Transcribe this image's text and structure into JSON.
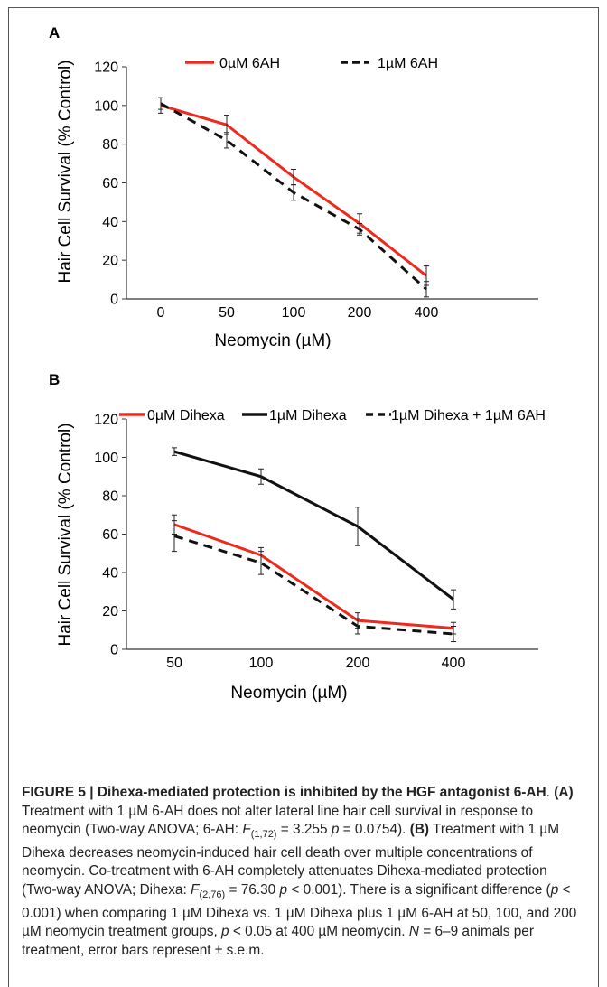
{
  "colors": {
    "red": "#ee2a1e",
    "black": "#111111",
    "axis": "#333333"
  },
  "chart_data": [
    {
      "panel": "A",
      "type": "line",
      "categories": [
        "0",
        "50",
        "100",
        "200",
        "400"
      ],
      "xlabel": "Neomycin (µM)",
      "ylabel": "Hair Cell Survival (% Control)",
      "ylim": [
        0,
        120
      ],
      "yticks": [
        0,
        20,
        40,
        60,
        80,
        100,
        120
      ],
      "legend_position": "top",
      "series": [
        {
          "name": "0µM 6AH",
          "color": "#ee2a1e",
          "dash": false,
          "values": [
            100,
            90,
            63,
            39,
            12
          ],
          "errors": [
            4,
            5,
            4,
            5,
            5
          ]
        },
        {
          "name": "1µM 6AH",
          "color": "#111111",
          "dash": true,
          "values": [
            101,
            82,
            55,
            36,
            5
          ],
          "errors": [
            3,
            4,
            4,
            3,
            4
          ]
        }
      ]
    },
    {
      "panel": "B",
      "type": "line",
      "categories": [
        "50",
        "100",
        "200",
        "400"
      ],
      "xlabel": "Neomycin (µM)",
      "ylabel": "Hair Cell Survival (% Control)",
      "ylim": [
        0,
        120
      ],
      "yticks": [
        0,
        20,
        40,
        60,
        80,
        100,
        120
      ],
      "legend_position": "top",
      "series": [
        {
          "name": "0µM Dihexa",
          "color": "#ee2a1e",
          "dash": false,
          "values": [
            65,
            49,
            15,
            11
          ],
          "errors": [
            5,
            4,
            4,
            3
          ]
        },
        {
          "name": "1µM Dihexa",
          "color": "#111111",
          "dash": false,
          "values": [
            103,
            90,
            64,
            26
          ],
          "errors": [
            2,
            4,
            10,
            5
          ]
        },
        {
          "name": "1µM Dihexa + 1µM 6AH",
          "color": "#111111",
          "dash": true,
          "values": [
            59,
            45,
            12,
            8
          ],
          "errors": [
            8,
            6,
            4,
            4
          ]
        }
      ]
    }
  ],
  "caption": {
    "figure_label": "FIGURE 5 | Dihexa-mediated protection is inhibited by the HGF antagonist 6-AH",
    "sentences": [
      ". ",
      "(A)",
      " Treatment with 1 µM 6-AH does not alter lateral line hair cell survival in response to neomycin (Two-way ANOVA; 6-AH: ",
      "F",
      "(1,72)",
      " = 3.255 ",
      "p",
      " = 0.0754). ",
      "(B)",
      " Treatment with 1 µM Dihexa decreases neomycin-induced hair cell death over multiple concentrations of neomycin. Co-treatment with 6-AH completely attenuates Dihexa-mediated protection (Two-way ANOVA; Dihexa: ",
      "F",
      "(2,76)",
      " = 76.30 ",
      "p",
      " < 0.001). There is a significant difference (",
      "p",
      " < 0.001) when comparing 1 µM Dihexa vs. 1 µM Dihexa plus 1 µM 6-AH at 50, 100, and 200 µM neomycin treatment groups, ",
      "p",
      " < 0.05 at 400 µM neomycin. ",
      "N",
      " = 6–9 animals per treatment, error bars represent ± s.e.m."
    ]
  }
}
